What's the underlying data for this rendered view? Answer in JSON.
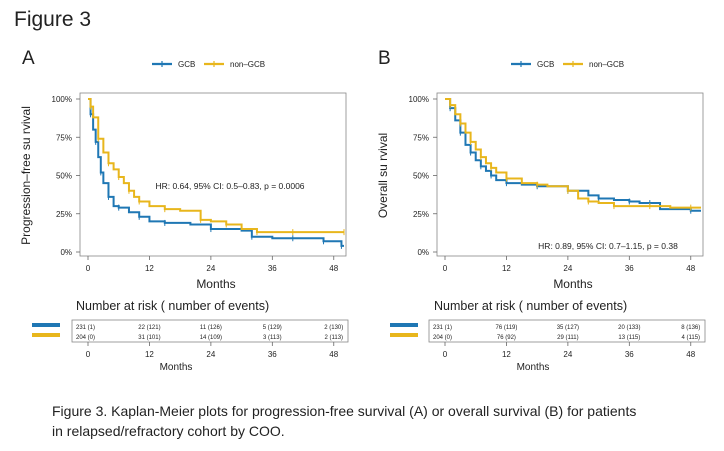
{
  "figure": {
    "title": "Figure 3",
    "caption_line1": "Figure 3. Kaplan-Meier plots for progression-free survival (A) or overall survival (B) for patients",
    "caption_line2": "in relapsed/refractory cohort by COO."
  },
  "colors": {
    "gcb": "#1f77b4",
    "nongcb": "#e8b61c",
    "axis": "#555555",
    "grid": "#dddddd"
  },
  "chart_data": [
    {
      "panel": "A",
      "type": "line",
      "legend": [
        "GCB",
        "non–GCB"
      ],
      "ylabel": "Progression–free su rvival",
      "xlabel": "Months",
      "xlim": [
        0,
        50
      ],
      "ylim": [
        0,
        100
      ],
      "xticks": [
        0,
        12,
        24,
        36,
        48
      ],
      "yticks": [
        "0%",
        "25%",
        "50%",
        "75%",
        "100%"
      ],
      "annotation": "HR: 0.64, 95% CI: 0.5–0.83, p = 0.0006",
      "series": [
        {
          "name": "GCB",
          "x": [
            0,
            0.5,
            1,
            1.5,
            2,
            2.5,
            3,
            4,
            5,
            6,
            8,
            10,
            12,
            15,
            20,
            24,
            30,
            32,
            36,
            40,
            44,
            46,
            48,
            49.5,
            50
          ],
          "y": [
            100,
            90,
            80,
            72,
            62,
            52,
            45,
            36,
            30,
            29,
            26,
            23,
            20,
            19,
            18,
            15,
            14,
            10,
            9,
            9,
            9,
            7,
            7,
            4,
            4
          ]
        },
        {
          "name": "non–GCB",
          "x": [
            0,
            0.5,
            1,
            2,
            3,
            4,
            5,
            6,
            7,
            8,
            9,
            10,
            12,
            15,
            18,
            22,
            24,
            27,
            30,
            33,
            36,
            40,
            48,
            50
          ],
          "y": [
            100,
            95,
            88,
            74,
            65,
            58,
            54,
            49,
            45,
            40,
            36,
            33,
            30,
            28,
            27,
            21,
            20,
            18,
            15,
            13,
            13,
            13,
            13,
            13
          ]
        }
      ],
      "risk_table": {
        "title": "Number at  risk ( number of events)",
        "xlabel": "Months",
        "rows": [
          {
            "name": "GCB",
            "cells": [
              "231 (1)",
              "22 (121)",
              "11 (126)",
              "5 (129)",
              "2 (130)"
            ]
          },
          {
            "name": "non–GCB",
            "cells": [
              "204 (0)",
              "31 (101)",
              "14 (109)",
              "3 (113)",
              "2 (113)"
            ]
          }
        ]
      }
    },
    {
      "panel": "B",
      "type": "line",
      "legend": [
        "GCB",
        "non–GCB"
      ],
      "ylabel": "Overall su rvival",
      "xlabel": "Months",
      "xlim": [
        0,
        50
      ],
      "ylim": [
        0,
        100
      ],
      "xticks": [
        0,
        12,
        24,
        36,
        48
      ],
      "yticks": [
        "0%",
        "25%",
        "50%",
        "75%",
        "100%"
      ],
      "annotation": "HR: 0.89, 95% CI: 0.7–1.15, p = 0.38",
      "series": [
        {
          "name": "GCB",
          "x": [
            0,
            1,
            2,
            3,
            4,
            5,
            6,
            7,
            8,
            9,
            10,
            12,
            15,
            18,
            20,
            24,
            28,
            30,
            33,
            36,
            38,
            40,
            42,
            48,
            50
          ],
          "y": [
            100,
            94,
            86,
            78,
            70,
            65,
            60,
            56,
            53,
            50,
            47,
            45,
            44,
            43,
            43,
            40,
            37,
            35,
            34,
            33,
            32,
            32,
            28,
            27,
            27
          ]
        },
        {
          "name": "non–GCB",
          "x": [
            0,
            1,
            2,
            3,
            4,
            5,
            6,
            7,
            8,
            9,
            10,
            12,
            15,
            18,
            20,
            24,
            26,
            28,
            30,
            33,
            36,
            40,
            44,
            48,
            50
          ],
          "y": [
            100,
            96,
            90,
            84,
            78,
            72,
            67,
            62,
            58,
            55,
            52,
            48,
            45,
            44,
            43,
            40,
            35,
            33,
            32,
            30,
            30,
            30,
            29,
            29,
            29
          ]
        }
      ],
      "risk_table": {
        "title": "Number at  risk ( number of events)",
        "xlabel": "Months",
        "rows": [
          {
            "name": "GCB",
            "cells": [
              "231 (1)",
              "76 (119)",
              "35 (127)",
              "20 (133)",
              "8 (136)"
            ]
          },
          {
            "name": "non–GCB",
            "cells": [
              "204 (0)",
              "76 (92)",
              "29 (111)",
              "13 (115)",
              "4 (115)"
            ]
          }
        ]
      }
    }
  ]
}
